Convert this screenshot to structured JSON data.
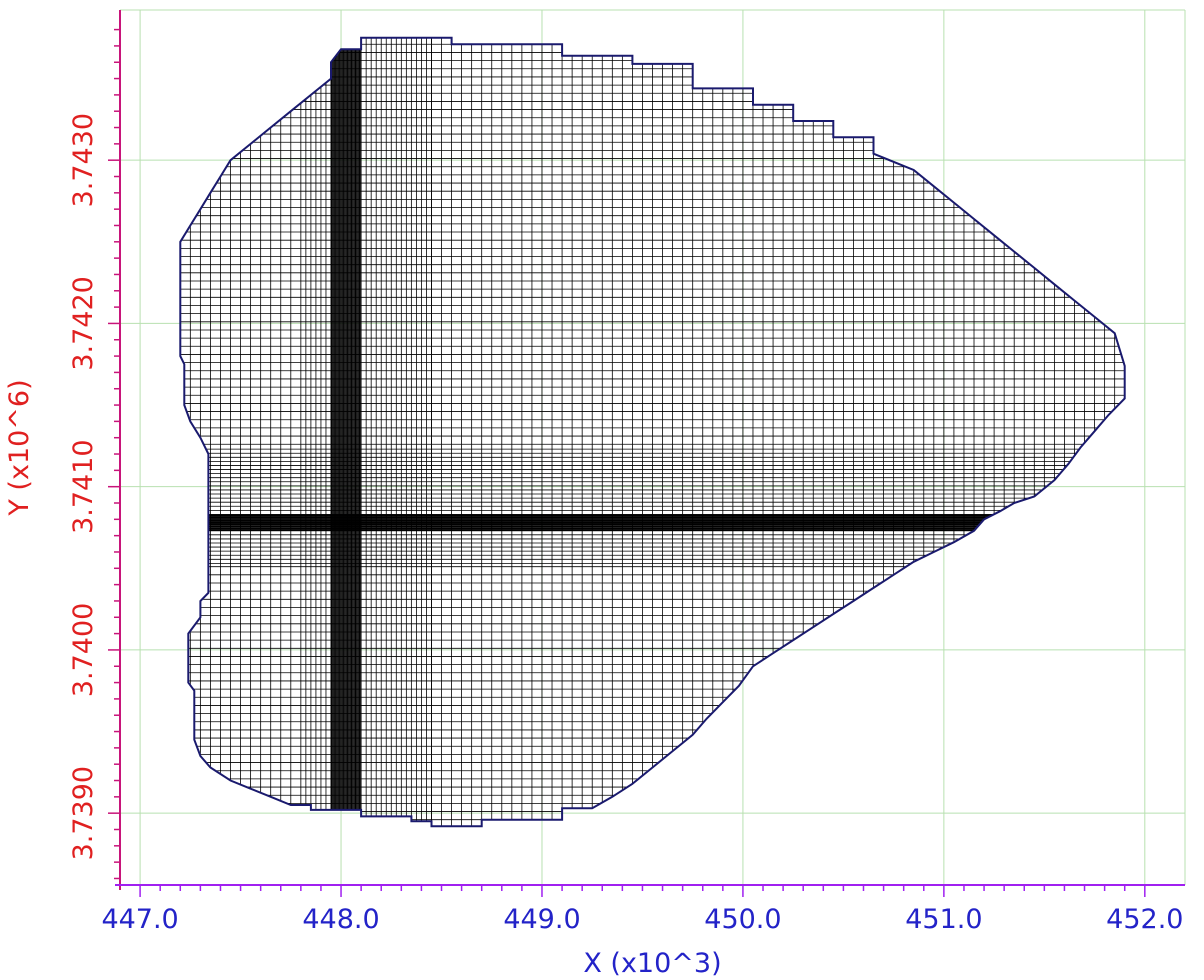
{
  "chart_data": {
    "type": "other",
    "description_type": "finite-difference model grid outline",
    "xlabel": "X (x10^3)",
    "ylabel": "Y (x10^6)",
    "x_tick_labels": [
      "447.0",
      "448.0",
      "449.0",
      "450.0",
      "451.0",
      "452.0"
    ],
    "x_ticks": [
      447.0,
      448.0,
      449.0,
      450.0,
      451.0,
      452.0
    ],
    "y_tick_labels": [
      "3.7390",
      "3.7400",
      "3.7410",
      "3.7420",
      "3.7430"
    ],
    "y_ticks": [
      3.739,
      3.74,
      3.741,
      3.742,
      3.743
    ],
    "xlim": [
      446.9,
      452.2
    ],
    "ylim": [
      3.73856,
      3.74392
    ],
    "grid": true,
    "colors": {
      "x_axis": "#a020f0",
      "y_axis": "#c8147a",
      "x_text": "#2323c8",
      "y_text": "#e02020",
      "gridlines": "#b8e0b0",
      "outline": "#1a1a6e",
      "cells": "#000000"
    },
    "refinement": {
      "x_band": [
        447.95,
        448.1
      ],
      "y_band": [
        3.74073,
        3.74083
      ]
    },
    "boundary": [
      [
        448.0,
        3.74368
      ],
      [
        448.1,
        3.74368
      ],
      [
        448.1,
        3.74375
      ],
      [
        448.55,
        3.74375
      ],
      [
        448.55,
        3.74371
      ],
      [
        449.1,
        3.74371
      ],
      [
        449.1,
        3.74364
      ],
      [
        449.45,
        3.74364
      ],
      [
        449.45,
        3.74359
      ],
      [
        449.75,
        3.74359
      ],
      [
        449.75,
        3.74344
      ],
      [
        450.05,
        3.74344
      ],
      [
        450.05,
        3.74334
      ],
      [
        450.25,
        3.74334
      ],
      [
        450.25,
        3.74324
      ],
      [
        450.45,
        3.74324
      ],
      [
        450.45,
        3.74314
      ],
      [
        450.65,
        3.74314
      ],
      [
        450.65,
        3.74304
      ],
      [
        450.85,
        3.74294
      ],
      [
        450.95,
        3.74284
      ],
      [
        451.05,
        3.74274
      ],
      [
        451.15,
        3.74264
      ],
      [
        451.25,
        3.74254
      ],
      [
        451.35,
        3.74244
      ],
      [
        451.45,
        3.74234
      ],
      [
        451.55,
        3.74224
      ],
      [
        451.65,
        3.74214
      ],
      [
        451.75,
        3.74204
      ],
      [
        451.85,
        3.74194
      ],
      [
        451.9,
        3.74174
      ],
      [
        451.9,
        3.74154
      ],
      [
        451.82,
        3.74144
      ],
      [
        451.75,
        3.74134
      ],
      [
        451.68,
        3.74124
      ],
      [
        451.62,
        3.74114
      ],
      [
        451.55,
        3.74104
      ],
      [
        451.45,
        3.74094
      ],
      [
        451.35,
        3.7409
      ],
      [
        451.28,
        3.74085
      ],
      [
        451.2,
        3.7408
      ],
      [
        451.15,
        3.74073
      ],
      [
        451.05,
        3.74066
      ],
      [
        450.95,
        3.7406
      ],
      [
        450.85,
        3.74054
      ],
      [
        450.75,
        3.74046
      ],
      [
        450.65,
        3.74038
      ],
      [
        450.55,
        3.7403
      ],
      [
        450.45,
        3.74022
      ],
      [
        450.35,
        3.74014
      ],
      [
        450.25,
        3.74006
      ],
      [
        450.15,
        3.73998
      ],
      [
        450.05,
        3.7399
      ],
      [
        449.98,
        3.73978
      ],
      [
        449.9,
        3.73968
      ],
      [
        449.82,
        3.73958
      ],
      [
        449.75,
        3.73948
      ],
      [
        449.65,
        3.73938
      ],
      [
        449.55,
        3.73928
      ],
      [
        449.45,
        3.73918
      ],
      [
        449.35,
        3.7391
      ],
      [
        449.25,
        3.73903
      ],
      [
        449.1,
        3.73903
      ],
      [
        449.1,
        3.73896
      ],
      [
        448.7,
        3.73896
      ],
      [
        448.7,
        3.73892
      ],
      [
        448.45,
        3.73892
      ],
      [
        448.45,
        3.73895
      ],
      [
        448.35,
        3.73895
      ],
      [
        448.35,
        3.73898
      ],
      [
        448.1,
        3.73898
      ],
      [
        448.1,
        3.73902
      ],
      [
        447.85,
        3.73902
      ],
      [
        447.85,
        3.73905
      ],
      [
        447.75,
        3.73905
      ],
      [
        447.65,
        3.7391
      ],
      [
        447.55,
        3.73915
      ],
      [
        447.45,
        3.7392
      ],
      [
        447.35,
        3.73928
      ],
      [
        447.3,
        3.73935
      ],
      [
        447.27,
        3.73945
      ],
      [
        447.27,
        3.73975
      ],
      [
        447.24,
        3.7398
      ],
      [
        447.24,
        3.7401
      ],
      [
        447.3,
        3.7402
      ],
      [
        447.3,
        3.7403
      ],
      [
        447.34,
        3.74035
      ],
      [
        447.34,
        3.7412
      ],
      [
        447.3,
        3.7413
      ],
      [
        447.25,
        3.7414
      ],
      [
        447.22,
        3.7415
      ],
      [
        447.22,
        3.74175
      ],
      [
        447.2,
        3.7418
      ],
      [
        447.2,
        3.7425
      ],
      [
        447.25,
        3.7426
      ],
      [
        447.3,
        3.7427
      ],
      [
        447.35,
        3.7428
      ],
      [
        447.4,
        3.7429
      ],
      [
        447.45,
        3.743
      ],
      [
        447.55,
        3.7431
      ],
      [
        447.65,
        3.7432
      ],
      [
        447.75,
        3.7433
      ],
      [
        447.85,
        3.7434
      ],
      [
        447.95,
        3.7435
      ],
      [
        447.95,
        3.7436
      ],
      [
        448.0,
        3.74368
      ]
    ]
  }
}
